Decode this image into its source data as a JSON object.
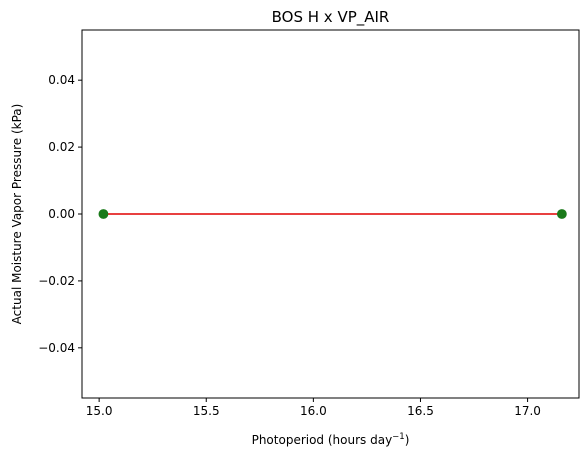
{
  "chart_data": {
    "type": "scatter",
    "title": "BOS H x VP_AIR",
    "xlabel": "Photoperiod (hours day",
    "xlabel_sup": "−1",
    "xlabel_tail": ")",
    "ylabel": "Actual Moisture Vapor Pressure (kPa)",
    "xlim": [
      14.92,
      17.24
    ],
    "ylim": [
      -0.055,
      0.055
    ],
    "xticks": [
      15.0,
      15.5,
      16.0,
      16.5,
      17.0
    ],
    "xtick_labels": [
      "15.0",
      "15.5",
      "16.0",
      "16.5",
      "17.0"
    ],
    "yticks": [
      -0.04,
      -0.02,
      0.0,
      0.02,
      0.04
    ],
    "ytick_labels": [
      "−0.04",
      "−0.02",
      "0.00",
      "0.02",
      "0.04"
    ],
    "points": [
      {
        "x": 15.02,
        "y": 0.0
      },
      {
        "x": 17.16,
        "y": 0.0
      }
    ],
    "fit_line": {
      "x": [
        15.02,
        17.16
      ],
      "y": [
        0.0,
        0.0
      ]
    },
    "grid": false,
    "colors": {
      "points": "#1a7a1a",
      "fit_line": "#e00000"
    }
  }
}
